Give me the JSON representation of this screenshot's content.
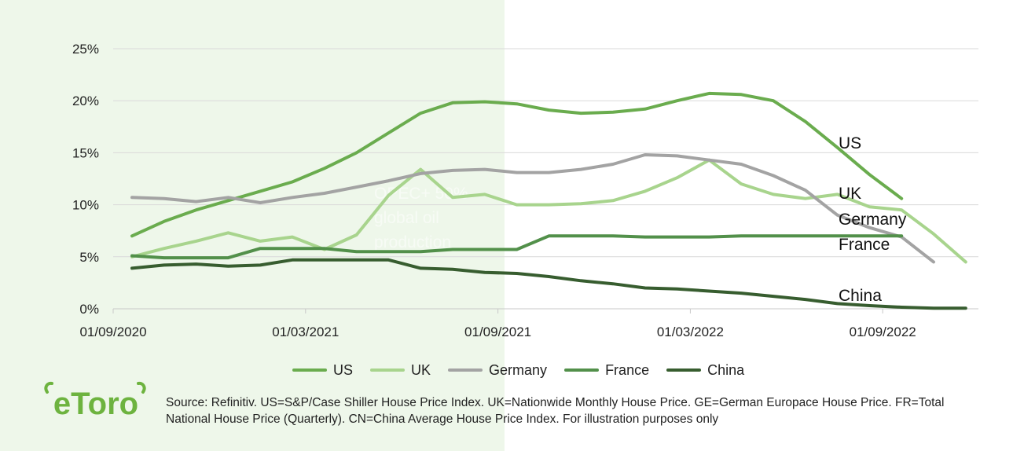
{
  "brand": {
    "logo_text": "eToro",
    "color": "#6db33f"
  },
  "overlay_text": [
    "OPEC+ 50%",
    "global oil",
    "production"
  ],
  "source_text": "Source: Refinitiv. US=S&P/Case Shiller House Price Index. UK=Nationwide Monthly House Price. GE=German Europace House Price. FR=Total National House Price (Quarterly). CN=China Average House Price Index. For illustration purposes only",
  "chart_data": {
    "type": "line",
    "x_tick_labels": [
      "01/09/2020",
      "01/03/2021",
      "01/09/2021",
      "01/03/2022",
      "01/09/2022"
    ],
    "y_tick_labels": [
      "0%",
      "5%",
      "10%",
      "15%",
      "20%",
      "25%"
    ],
    "ylim": [
      0,
      25
    ],
    "grid": true,
    "legend_position": "bottom",
    "x": [
      "2020-09",
      "2020-10",
      "2020-11",
      "2020-12",
      "2021-01",
      "2021-02",
      "2021-03",
      "2021-04",
      "2021-05",
      "2021-06",
      "2021-07",
      "2021-08",
      "2021-09",
      "2021-10",
      "2021-11",
      "2021-12",
      "2022-01",
      "2022-02",
      "2022-03",
      "2022-04",
      "2022-05",
      "2022-06",
      "2022-07",
      "2022-08",
      "2022-09",
      "2022-10",
      "2022-11"
    ],
    "series": [
      {
        "name": "US",
        "color": "#6aac4e",
        "values": [
          7.0,
          8.4,
          9.5,
          10.4,
          11.3,
          12.2,
          13.5,
          15.0,
          16.9,
          18.8,
          19.8,
          19.9,
          19.7,
          19.1,
          18.8,
          18.9,
          19.2,
          20.0,
          20.7,
          20.6,
          20.0,
          18.0,
          15.5,
          12.9,
          10.6,
          null,
          null
        ]
      },
      {
        "name": "UK",
        "color": "#a8d48d",
        "values": [
          5.0,
          5.8,
          6.5,
          7.3,
          6.5,
          6.9,
          5.7,
          7.1,
          10.9,
          13.4,
          10.7,
          11.0,
          10.0,
          10.0,
          10.1,
          10.4,
          11.3,
          12.6,
          14.3,
          12.0,
          11.0,
          10.6,
          11.0,
          9.8,
          9.5,
          7.2,
          4.5
        ]
      },
      {
        "name": "Germany",
        "color": "#a3a3a3",
        "values": [
          10.7,
          10.6,
          10.3,
          10.7,
          10.2,
          10.7,
          11.1,
          11.7,
          12.3,
          13.0,
          13.3,
          13.4,
          13.1,
          13.1,
          13.4,
          13.9,
          14.8,
          14.7,
          14.3,
          13.9,
          12.8,
          11.4,
          9.0,
          7.8,
          6.9,
          4.5,
          null
        ]
      },
      {
        "name": "France",
        "color": "#52904a",
        "values": [
          5.1,
          4.9,
          4.9,
          4.9,
          5.8,
          5.8,
          5.8,
          5.5,
          5.5,
          5.5,
          5.7,
          5.7,
          5.7,
          7.0,
          7.0,
          7.0,
          6.9,
          6.9,
          6.9,
          7.0,
          7.0,
          7.0,
          7.0,
          7.0,
          7.0,
          null,
          null
        ]
      },
      {
        "name": "China",
        "color": "#375d2f",
        "values": [
          3.9,
          4.2,
          4.3,
          4.1,
          4.2,
          4.7,
          4.7,
          4.7,
          4.7,
          3.9,
          3.8,
          3.5,
          3.4,
          3.1,
          2.7,
          2.4,
          2.0,
          1.9,
          1.7,
          1.5,
          1.2,
          0.9,
          0.5,
          0.3,
          0.15,
          0.05,
          0.05
        ]
      }
    ]
  }
}
